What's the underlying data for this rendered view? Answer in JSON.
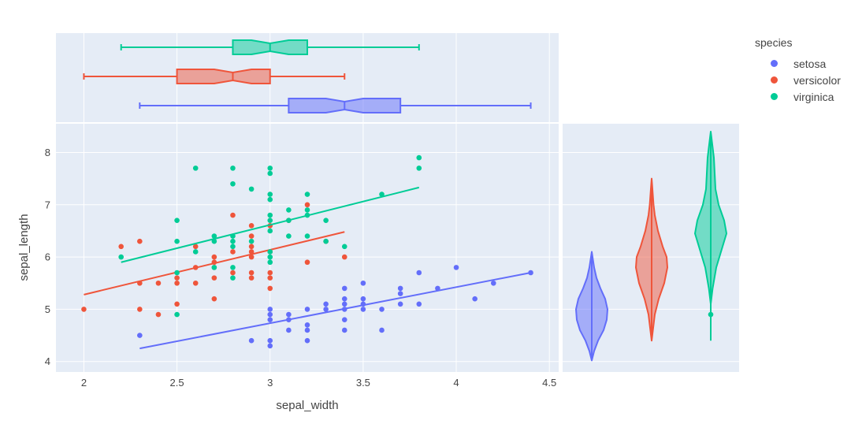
{
  "colors": {
    "setosa": "#636efa",
    "versicolor": "#ef553b",
    "virginica": "#00cc96",
    "panel_bg": "#e5ecf6",
    "grid": "#ffffff"
  },
  "legend": {
    "title": "species",
    "items": [
      "setosa",
      "versicolor",
      "virginica"
    ]
  },
  "chart_data": [
    {
      "type": "scatter",
      "xlabel": "sepal_width",
      "ylabel": "sepal_length",
      "xlim": [
        1.85,
        4.55
      ],
      "ylim": [
        3.8,
        8.55
      ],
      "xticks": [
        2,
        2.5,
        3,
        3.5,
        4,
        4.5
      ],
      "yticks": [
        4,
        5,
        6,
        7,
        8
      ],
      "grid": true,
      "series": [
        {
          "name": "setosa",
          "trendline": [
            [
              2.3,
              4.25
            ],
            [
              4.4,
              5.7
            ]
          ],
          "points": [
            [
              2.3,
              4.5
            ],
            [
              2.9,
              4.4
            ],
            [
              3,
              4.3
            ],
            [
              3,
              4.4
            ],
            [
              3,
              4.8
            ],
            [
              3,
              4.9
            ],
            [
              3,
              5
            ],
            [
              3.1,
              4.6
            ],
            [
              3.1,
              4.8
            ],
            [
              3.1,
              4.9
            ],
            [
              3.2,
              4.4
            ],
            [
              3.2,
              4.6
            ],
            [
              3.2,
              4.7
            ],
            [
              3.2,
              5
            ],
            [
              3.3,
              5
            ],
            [
              3.3,
              5.1
            ],
            [
              3.4,
              4.6
            ],
            [
              3.4,
              4.8
            ],
            [
              3.4,
              5
            ],
            [
              3.4,
              5.1
            ],
            [
              3.4,
              5.2
            ],
            [
              3.4,
              5.4
            ],
            [
              3.5,
              5
            ],
            [
              3.5,
              5.1
            ],
            [
              3.5,
              5.2
            ],
            [
              3.5,
              5.5
            ],
            [
              3.6,
              4.6
            ],
            [
              3.6,
              5
            ],
            [
              3.7,
              5.1
            ],
            [
              3.7,
              5.3
            ],
            [
              3.7,
              5.4
            ],
            [
              3.8,
              5.1
            ],
            [
              3.8,
              5.7
            ],
            [
              3.9,
              5.4
            ],
            [
              4,
              5.8
            ],
            [
              4.1,
              5.2
            ],
            [
              4.2,
              5.5
            ],
            [
              4.4,
              5.7
            ]
          ]
        },
        {
          "name": "versicolor",
          "trendline": [
            [
              2,
              5.28
            ],
            [
              3.4,
              6.48
            ]
          ],
          "points": [
            [
              2,
              5
            ],
            [
              2.2,
              6.2
            ],
            [
              2.3,
              5.5
            ],
            [
              2.3,
              6.3
            ],
            [
              2.3,
              5
            ],
            [
              2.4,
              5.5
            ],
            [
              2.4,
              4.9
            ],
            [
              2.5,
              5.5
            ],
            [
              2.5,
              5.1
            ],
            [
              2.5,
              5.6
            ],
            [
              2.6,
              5.5
            ],
            [
              2.6,
              5.8
            ],
            [
              2.7,
              5.2
            ],
            [
              2.7,
              5.6
            ],
            [
              2.7,
              6
            ],
            [
              2.7,
              5.8
            ],
            [
              2.8,
              6.8
            ],
            [
              2.8,
              5.7
            ],
            [
              2.8,
              6.1
            ],
            [
              2.9,
              5.6
            ],
            [
              2.9,
              5.7
            ],
            [
              2.9,
              6.1
            ],
            [
              2.9,
              6.2
            ],
            [
              2.9,
              6.4
            ],
            [
              2.9,
              6
            ],
            [
              2.9,
              6.6
            ],
            [
              3,
              5.4
            ],
            [
              3,
              5.6
            ],
            [
              3,
              5.7
            ],
            [
              3,
              6.1
            ],
            [
              3.1,
              6.7
            ],
            [
              3.2,
              5.9
            ],
            [
              3.2,
              7
            ],
            [
              3.3,
              6.3
            ],
            [
              3.4,
              6
            ],
            [
              2.6,
              6.2
            ],
            [
              2.7,
              5.9
            ],
            [
              3,
              6.6
            ]
          ]
        },
        {
          "name": "virginica",
          "trendline": [
            [
              2.2,
              5.9
            ],
            [
              3.8,
              7.33
            ]
          ],
          "points": [
            [
              2.2,
              6
            ],
            [
              2.5,
              4.9
            ],
            [
              2.5,
              5.7
            ],
            [
              2.5,
              6.3
            ],
            [
              2.5,
              6.7
            ],
            [
              2.6,
              6.1
            ],
            [
              2.6,
              7.7
            ],
            [
              2.7,
              5.8
            ],
            [
              2.7,
              6.3
            ],
            [
              2.7,
              6.4
            ],
            [
              2.8,
              5.6
            ],
            [
              2.8,
              5.8
            ],
            [
              2.8,
              6.2
            ],
            [
              2.8,
              6.3
            ],
            [
              2.8,
              6.4
            ],
            [
              2.8,
              7.4
            ],
            [
              2.8,
              7.7
            ],
            [
              2.9,
              6.3
            ],
            [
              2.9,
              7.3
            ],
            [
              3,
              5.9
            ],
            [
              3,
              6
            ],
            [
              3,
              6.1
            ],
            [
              3,
              6.5
            ],
            [
              3,
              6.7
            ],
            [
              3,
              6.8
            ],
            [
              3,
              7.1
            ],
            [
              3,
              7.2
            ],
            [
              3,
              7.6
            ],
            [
              3,
              7.7
            ],
            [
              3.1,
              6.4
            ],
            [
              3.1,
              6.7
            ],
            [
              3.1,
              6.9
            ],
            [
              3.2,
              6.4
            ],
            [
              3.2,
              6.8
            ],
            [
              3.2,
              6.9
            ],
            [
              3.2,
              7.2
            ],
            [
              3.3,
              6.3
            ],
            [
              3.3,
              6.7
            ],
            [
              3.4,
              6.2
            ],
            [
              3.6,
              7.2
            ],
            [
              3.8,
              7.7
            ],
            [
              3.8,
              7.9
            ]
          ]
        }
      ]
    },
    {
      "type": "box",
      "orientation": "horizontal",
      "boxes": [
        {
          "name": "setosa",
          "min": 2.3,
          "q1": 3.1,
          "median": 3.4,
          "q3": 3.7,
          "max": 4.4,
          "notch_low": 3.3,
          "notch_high": 3.5
        },
        {
          "name": "versicolor",
          "min": 2.0,
          "q1": 2.5,
          "median": 2.8,
          "q3": 3.0,
          "max": 3.4,
          "notch_low": 2.7,
          "notch_high": 2.9
        },
        {
          "name": "virginica",
          "min": 2.2,
          "q1": 2.8,
          "median": 3.0,
          "q3": 3.2,
          "max": 3.8,
          "notch_low": 2.9,
          "notch_high": 3.1
        }
      ]
    },
    {
      "type": "violin",
      "violins": [
        {
          "name": "setosa",
          "min": 4.02,
          "max": 6.1,
          "outliers": [],
          "profile": [
            [
              4.02,
              0
            ],
            [
              4.2,
              0.15
            ],
            [
              4.4,
              0.4
            ],
            [
              4.6,
              0.75
            ],
            [
              4.8,
              0.95
            ],
            [
              5.0,
              1.0
            ],
            [
              5.2,
              0.85
            ],
            [
              5.4,
              0.55
            ],
            [
              5.6,
              0.3
            ],
            [
              5.8,
              0.15
            ],
            [
              6.0,
              0.05
            ],
            [
              6.1,
              0
            ]
          ]
        },
        {
          "name": "versicolor",
          "min": 4.4,
          "max": 7.5,
          "outliers": [],
          "profile": [
            [
              4.4,
              0
            ],
            [
              4.6,
              0.08
            ],
            [
              4.9,
              0.2
            ],
            [
              5.2,
              0.45
            ],
            [
              5.5,
              0.8
            ],
            [
              5.8,
              1.0
            ],
            [
              6.0,
              0.95
            ],
            [
              6.2,
              0.7
            ],
            [
              6.5,
              0.4
            ],
            [
              6.8,
              0.2
            ],
            [
              7.0,
              0.12
            ],
            [
              7.3,
              0.05
            ],
            [
              7.5,
              0
            ]
          ]
        },
        {
          "name": "virginica",
          "min": 4.4,
          "max": 8.4,
          "outliers": [
            4.9
          ],
          "profile": [
            [
              5.1,
              0
            ],
            [
              5.4,
              0.12
            ],
            [
              5.8,
              0.35
            ],
            [
              6.2,
              0.75
            ],
            [
              6.45,
              1.0
            ],
            [
              6.7,
              0.85
            ],
            [
              7.0,
              0.5
            ],
            [
              7.3,
              0.3
            ],
            [
              7.6,
              0.25
            ],
            [
              7.9,
              0.2
            ],
            [
              8.2,
              0.08
            ],
            [
              8.4,
              0
            ]
          ]
        }
      ]
    }
  ]
}
